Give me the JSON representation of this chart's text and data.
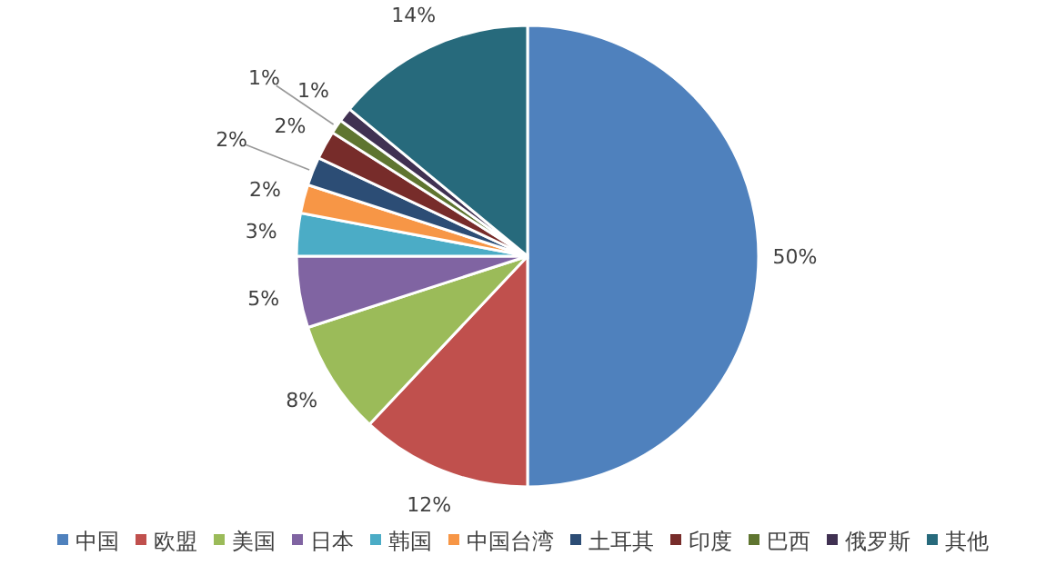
{
  "chart_data": {
    "type": "pie",
    "categories": [
      "中国",
      "欧盟",
      "美国",
      "日本",
      "韩国",
      "中国台湾",
      "土耳其",
      "印度",
      "巴西",
      "俄罗斯",
      "其他"
    ],
    "values": [
      50,
      12,
      8,
      5,
      3,
      2,
      2,
      2,
      1,
      1,
      14
    ],
    "value_labels": [
      "50%",
      "12%",
      "8%",
      "5%",
      "3%",
      "2%",
      "2%",
      "2%",
      "1%",
      "1%",
      "14%"
    ],
    "colors": [
      "#4f81bd",
      "#c0504d",
      "#9bbb59",
      "#8064a2",
      "#4bacc6",
      "#f79646",
      "#2c4d75",
      "#772c2a",
      "#5f7530",
      "#403152",
      "#276a7c"
    ],
    "legend": "bottom"
  }
}
